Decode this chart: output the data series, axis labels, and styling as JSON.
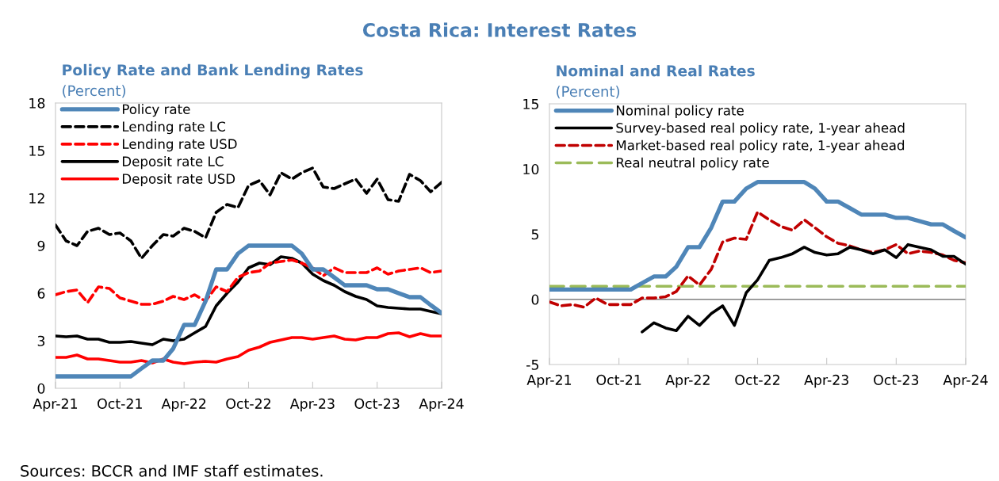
{
  "chart_data": [
    {
      "type": "line",
      "title": "Policy Rate and Bank Lending Rates",
      "subtitle": "(Percent)",
      "annotations": [
        "Costa Rica: Interest Rates",
        "Sources: BCCR and IMF staff estimates."
      ],
      "x": [
        "2021-04",
        "2021-05",
        "2021-06",
        "2021-07",
        "2021-08",
        "2021-09",
        "2021-10",
        "2021-11",
        "2021-12",
        "2022-01",
        "2022-02",
        "2022-03",
        "2022-04",
        "2022-05",
        "2022-06",
        "2022-07",
        "2022-08",
        "2022-09",
        "2022-10",
        "2022-11",
        "2022-12",
        "2023-01",
        "2023-02",
        "2023-03",
        "2023-04",
        "2023-05",
        "2023-06",
        "2023-07",
        "2023-08",
        "2023-09",
        "2023-10",
        "2023-11",
        "2023-12",
        "2024-01",
        "2024-02",
        "2024-03",
        "2024-04"
      ],
      "xlim": [
        "2021-04",
        "2024-04"
      ],
      "xticks": [
        {
          "value": "2021-04",
          "label": "Apr-21"
        },
        {
          "value": "2021-10",
          "label": "Oct-21"
        },
        {
          "value": "2022-04",
          "label": "Apr-22"
        },
        {
          "value": "2022-10",
          "label": "Oct-22"
        },
        {
          "value": "2023-04",
          "label": "Apr-23"
        },
        {
          "value": "2023-10",
          "label": "Oct-23"
        },
        {
          "value": "2024-04",
          "label": "Apr-24"
        }
      ],
      "ylim": [
        0,
        18
      ],
      "yticks": [
        0,
        3,
        6,
        9,
        12,
        15,
        18
      ],
      "grid": false,
      "legend": "top left",
      "marker": "none",
      "series": [
        {
          "name": "Policy rate",
          "color": "#4f86b8",
          "line_style": "solid",
          "values": [
            0.75,
            0.75,
            0.75,
            0.75,
            0.75,
            0.75,
            0.75,
            0.75,
            1.25,
            1.75,
            1.75,
            2.5,
            4.0,
            4.0,
            5.5,
            7.5,
            7.5,
            8.5,
            9.0,
            9.0,
            9.0,
            9.0,
            9.0,
            8.5,
            7.5,
            7.5,
            7.0,
            6.5,
            6.5,
            6.5,
            6.25,
            6.25,
            6.0,
            5.75,
            5.75,
            5.25,
            4.75
          ]
        },
        {
          "name": "Lending rate LC",
          "color": "#000000",
          "line_style": "dashed",
          "values": [
            10.3,
            9.3,
            9.0,
            9.9,
            10.1,
            9.7,
            9.8,
            9.3,
            8.2,
            9.0,
            9.7,
            9.6,
            10.1,
            9.9,
            9.5,
            11.1,
            11.6,
            11.4,
            12.8,
            13.1,
            12.2,
            13.6,
            13.2,
            13.6,
            13.9,
            12.7,
            12.6,
            12.9,
            13.2,
            12.3,
            13.2,
            11.9,
            11.8,
            13.5,
            13.1,
            12.4,
            13.0
          ]
        },
        {
          "name": "Lending rate USD",
          "color": "#ff0000",
          "line_style": "dashed",
          "values": [
            5.9,
            6.1,
            6.2,
            5.4,
            6.4,
            6.3,
            5.7,
            5.5,
            5.3,
            5.3,
            5.5,
            5.8,
            5.6,
            5.9,
            5.5,
            6.4,
            6.1,
            7.0,
            7.3,
            7.4,
            7.9,
            8.0,
            8.1,
            7.9,
            7.6,
            7.1,
            7.6,
            7.3,
            7.3,
            7.3,
            7.6,
            7.2,
            7.4,
            7.5,
            7.6,
            7.3,
            7.4
          ]
        },
        {
          "name": "Deposit rate LC",
          "color": "#000000",
          "line_style": "solid",
          "values": [
            3.3,
            3.25,
            3.3,
            3.1,
            3.1,
            2.9,
            2.9,
            2.95,
            2.85,
            2.75,
            3.1,
            3.0,
            3.1,
            3.5,
            3.9,
            5.2,
            6.0,
            6.7,
            7.6,
            7.9,
            7.8,
            8.3,
            8.2,
            7.9,
            7.2,
            6.8,
            6.5,
            6.1,
            5.8,
            5.6,
            5.2,
            5.1,
            5.05,
            5.0,
            5.0,
            4.85,
            4.7
          ]
        },
        {
          "name": "Deposit rate USD",
          "color": "#ff0000",
          "line_style": "solid",
          "values": [
            1.95,
            1.95,
            2.1,
            1.85,
            1.85,
            1.75,
            1.65,
            1.65,
            1.75,
            1.6,
            1.85,
            1.65,
            1.55,
            1.65,
            1.7,
            1.65,
            1.85,
            2.0,
            2.4,
            2.6,
            2.9,
            3.05,
            3.2,
            3.2,
            3.1,
            3.2,
            3.3,
            3.1,
            3.05,
            3.2,
            3.2,
            3.45,
            3.5,
            3.25,
            3.45,
            3.3,
            3.3
          ]
        }
      ]
    },
    {
      "type": "line",
      "title": "Nominal and Real Rates",
      "subtitle": "(Percent)",
      "x": [
        "2021-04",
        "2021-05",
        "2021-06",
        "2021-07",
        "2021-08",
        "2021-09",
        "2021-10",
        "2021-11",
        "2021-12",
        "2022-01",
        "2022-02",
        "2022-03",
        "2022-04",
        "2022-05",
        "2022-06",
        "2022-07",
        "2022-08",
        "2022-09",
        "2022-10",
        "2022-11",
        "2022-12",
        "2023-01",
        "2023-02",
        "2023-03",
        "2023-04",
        "2023-05",
        "2023-06",
        "2023-07",
        "2023-08",
        "2023-09",
        "2023-10",
        "2023-11",
        "2023-12",
        "2024-01",
        "2024-02",
        "2024-03",
        "2024-04"
      ],
      "xlim": [
        "2021-04",
        "2024-04"
      ],
      "xticks": [
        {
          "value": "2021-04",
          "label": "Apr-21"
        },
        {
          "value": "2021-10",
          "label": "Oct-21"
        },
        {
          "value": "2022-04",
          "label": "Apr-22"
        },
        {
          "value": "2022-10",
          "label": "Oct-22"
        },
        {
          "value": "2023-04",
          "label": "Apr-23"
        },
        {
          "value": "2023-10",
          "label": "Oct-23"
        },
        {
          "value": "2024-04",
          "label": "Apr-24"
        }
      ],
      "ylim": [
        -5,
        15
      ],
      "yticks": [
        -5,
        0,
        5,
        10,
        15
      ],
      "grid": false,
      "legend": "top left",
      "marker": "none",
      "ref_lines": [
        {
          "axis": "y",
          "value": 0,
          "color": "#808080",
          "line_style": "solid"
        }
      ],
      "series": [
        {
          "name": "Nominal policy rate",
          "color": "#4f86b8",
          "line_style": "solid",
          "values": [
            0.75,
            0.75,
            0.75,
            0.75,
            0.75,
            0.75,
            0.75,
            0.75,
            1.25,
            1.75,
            1.75,
            2.5,
            4.0,
            4.0,
            5.5,
            7.5,
            7.5,
            8.5,
            9.0,
            9.0,
            9.0,
            9.0,
            9.0,
            8.5,
            7.5,
            7.5,
            7.0,
            6.5,
            6.5,
            6.5,
            6.25,
            6.25,
            6.0,
            5.75,
            5.75,
            5.25,
            4.75
          ]
        },
        {
          "name": "Survey-based real policy rate, 1-year ahead",
          "color": "#000000",
          "line_style": "solid",
          "values": [
            null,
            null,
            null,
            null,
            null,
            null,
            null,
            null,
            -2.5,
            -1.8,
            -2.2,
            -2.4,
            -1.3,
            -2.0,
            -1.1,
            -0.5,
            -2.0,
            0.5,
            1.5,
            3.0,
            3.2,
            3.5,
            4.0,
            3.6,
            3.4,
            3.5,
            4.0,
            3.8,
            3.5,
            3.8,
            3.2,
            4.2,
            4.0,
            3.8,
            3.3,
            3.3,
            2.7
          ]
        },
        {
          "name": "Market-based real policy rate, 1-year ahead",
          "color": "#c00000",
          "line_style": "dashed",
          "values": [
            -0.2,
            -0.5,
            -0.4,
            -0.6,
            0.1,
            -0.4,
            -0.4,
            -0.4,
            0.1,
            0.1,
            0.2,
            0.6,
            1.8,
            1.1,
            2.3,
            4.4,
            4.7,
            4.6,
            6.7,
            6.1,
            5.6,
            5.3,
            6.1,
            5.5,
            4.8,
            4.3,
            4.1,
            3.8,
            3.6,
            3.8,
            4.2,
            3.5,
            3.7,
            3.6,
            3.4,
            3.0,
            2.8
          ]
        },
        {
          "name": "Real neutral policy rate",
          "color": "#9bbb59",
          "line_style": "longdash",
          "values": [
            1.0,
            1.0,
            1.0,
            1.0,
            1.0,
            1.0,
            1.0,
            1.0,
            1.0,
            1.0,
            1.0,
            1.0,
            1.0,
            1.0,
            1.0,
            1.0,
            1.0,
            1.0,
            1.0,
            1.0,
            1.0,
            1.0,
            1.0,
            1.0,
            1.0,
            1.0,
            1.0,
            1.0,
            1.0,
            1.0,
            1.0,
            1.0,
            1.0,
            1.0,
            1.0,
            1.0,
            1.0
          ]
        }
      ]
    }
  ]
}
